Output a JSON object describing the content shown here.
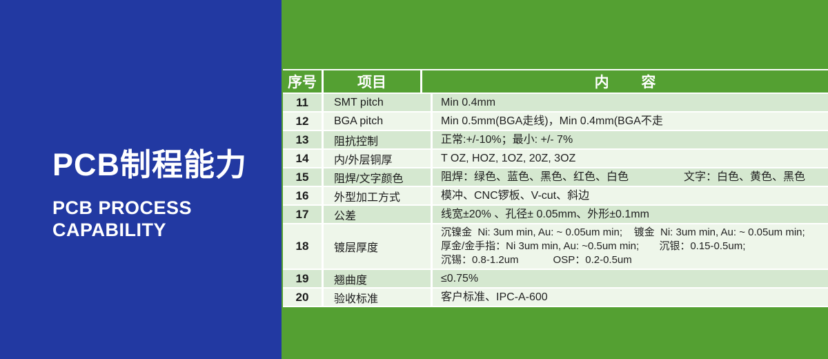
{
  "left_panel": {
    "title_cn": "PCB制程能力",
    "subtitle_lines": [
      "PCB PROCESS",
      "CAPABILITY"
    ]
  },
  "table": {
    "headers": {
      "no": "序号",
      "item": "项目",
      "content": "内        容"
    },
    "rows": [
      {
        "no": "11",
        "item": "SMT pitch",
        "lines": [
          "Min 0.4mm"
        ]
      },
      {
        "no": "12",
        "item": "BGA pitch",
        "lines": [
          "Min 0.5mm(BGA走线)，Min 0.4mm(BGA不走"
        ]
      },
      {
        "no": "13",
        "item": "阻抗控制",
        "lines": [
          "正常:+/-10%；最小: +/- 7%"
        ]
      },
      {
        "no": "14",
        "item": "内/外层铜厚",
        "lines": [
          "T OZ, HOZ, 1OZ, 20Z, 3OZ"
        ]
      },
      {
        "no": "15",
        "item": "阻焊/文字颜色",
        "lines": [
          "阻焊：绿色、蓝色、黑色、红色、白色                  文字：白色、黄色、黑色"
        ]
      },
      {
        "no": "16",
        "item": "外型加工方式",
        "lines": [
          "模冲、CNC锣板、V-cut、斜边"
        ]
      },
      {
        "no": "17",
        "item": "公差",
        "lines": [
          "线宽±20% 、孔径± 0.05mm、外形±0.1mm"
        ]
      },
      {
        "no": "18",
        "item": "镀层厚度",
        "lines": [
          "沉镍金  Ni: 3um min, Au: ~ 0.05um min;    镀金  Ni: 3um min, Au: ~ 0.05um min;",
          "厚金/金手指：Ni 3um min, Au: ~0.5um min;       沉银：0.15-0.5um;",
          "沉锡：0.8-1.2um            OSP：0.2-0.5um"
        ]
      },
      {
        "no": "19",
        "item": "翘曲度",
        "lines": [
          "≤0.75%"
        ]
      },
      {
        "no": "20",
        "item": "验收标准",
        "lines": [
          "客户标准、IPC-A-600"
        ]
      }
    ]
  },
  "colors": {
    "blue_panel": "#2239a2",
    "green_bg": "#54a032",
    "row_odd": "#d5e8d0",
    "row_even": "#eef6ea",
    "separator": "#ffffff",
    "header_text": "#ffffff",
    "body_text": "#212121"
  }
}
